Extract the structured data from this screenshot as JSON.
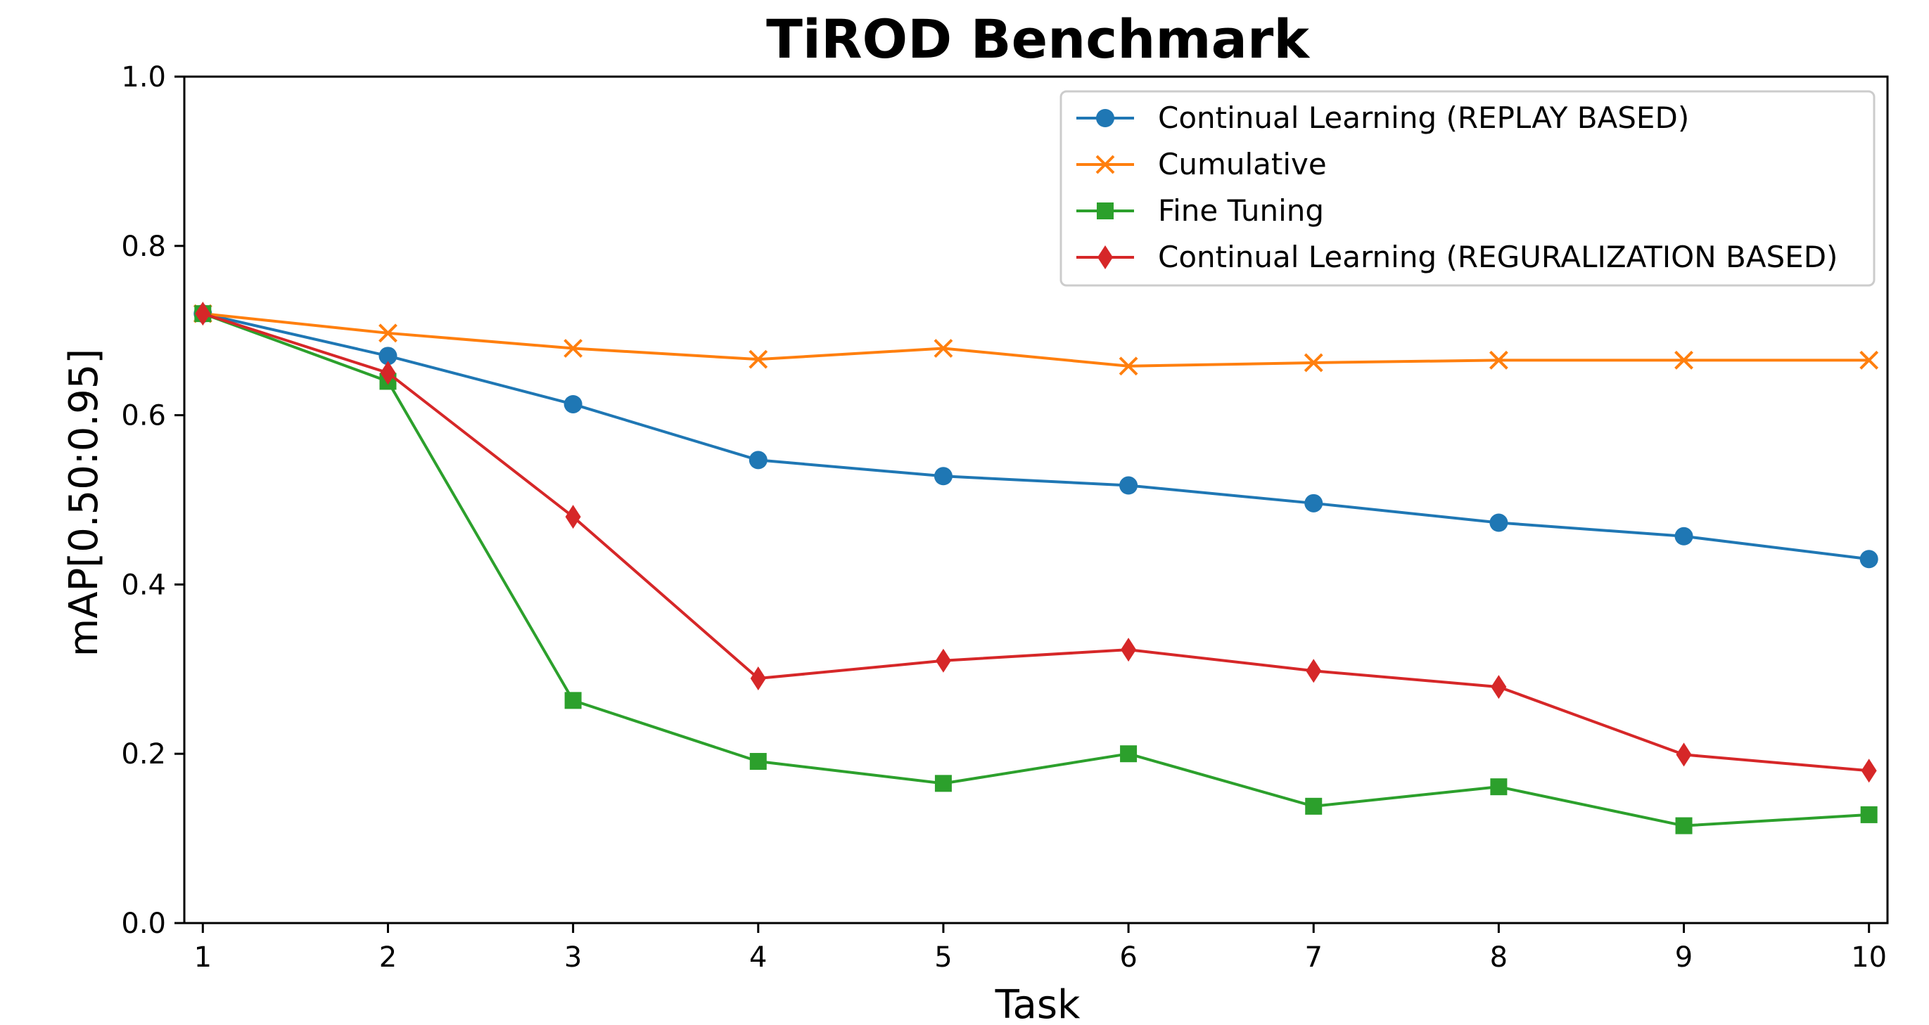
{
  "chart_data": {
    "type": "line",
    "title": "TiROD Benchmark",
    "xlabel": "Task",
    "ylabel": "mAP[0.50:0.95]",
    "x": [
      1,
      2,
      3,
      4,
      5,
      6,
      7,
      8,
      9,
      10
    ],
    "xlim": [
      0.9,
      10.1
    ],
    "ylim": [
      0.0,
      1.0
    ],
    "yticks": [
      "0.0",
      "0.2",
      "0.4",
      "0.6",
      "0.8",
      "1.0"
    ],
    "xticks": [
      "1",
      "2",
      "3",
      "4",
      "5",
      "6",
      "7",
      "8",
      "9",
      "10"
    ],
    "grid": false,
    "legend_position": "top-right",
    "series": [
      {
        "name": "Continual Learning (REPLAY BASED)",
        "color": "#1f77b4",
        "marker": "circle",
        "values": [
          0.72,
          0.67,
          0.613,
          0.547,
          0.528,
          0.517,
          0.496,
          0.473,
          0.457,
          0.43
        ]
      },
      {
        "name": "Cumulative",
        "color": "#ff7f0e",
        "marker": "x",
        "values": [
          0.72,
          0.697,
          0.679,
          0.666,
          0.679,
          0.658,
          0.662,
          0.665,
          0.665,
          0.665
        ]
      },
      {
        "name": "Fine Tuning",
        "color": "#2ca02c",
        "marker": "square",
        "values": [
          0.72,
          0.64,
          0.263,
          0.191,
          0.165,
          0.2,
          0.138,
          0.161,
          0.115,
          0.128
        ]
      },
      {
        "name": "Continual Learning (REGURALIZATION BASED)",
        "color": "#d62728",
        "marker": "diamond",
        "values": [
          0.72,
          0.65,
          0.48,
          0.289,
          0.31,
          0.323,
          0.298,
          0.279,
          0.199,
          0.18
        ]
      }
    ]
  }
}
